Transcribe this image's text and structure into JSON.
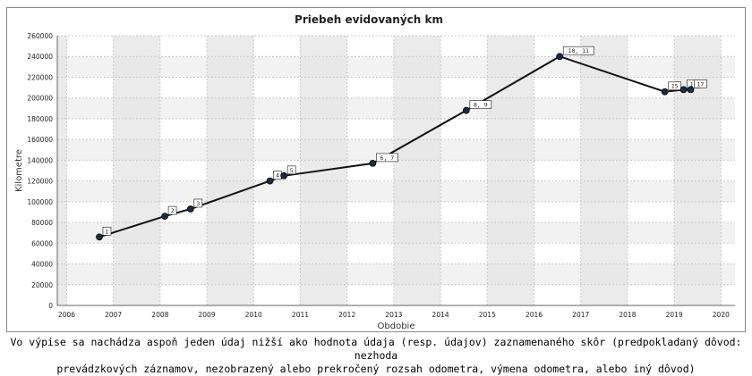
{
  "chart_data": {
    "type": "line",
    "title": "Priebeh evidovaných km",
    "xlabel": "Obdobie",
    "ylabel": "Kilometre",
    "xlim": [
      2005.8,
      2020.3
    ],
    "ylim": [
      0,
      260000
    ],
    "x_ticks": [
      2006,
      2007,
      2008,
      2009,
      2010,
      2011,
      2012,
      2013,
      2014,
      2015,
      2016,
      2017,
      2018,
      2019,
      2020
    ],
    "y_ticks": [
      0,
      20000,
      40000,
      60000,
      80000,
      100000,
      120000,
      140000,
      160000,
      180000,
      200000,
      220000,
      240000,
      260000
    ],
    "grid": true,
    "line_color": "#111111",
    "marker_color": "#1c2a3f",
    "points": [
      {
        "x": 2006.7,
        "y": 66000,
        "label": "1"
      },
      {
        "x": 2008.1,
        "y": 86000,
        "label": "2"
      },
      {
        "x": 2008.65,
        "y": 93000,
        "label": "3"
      },
      {
        "x": 2010.35,
        "y": 120000,
        "label": "4"
      },
      {
        "x": 2010.65,
        "y": 125000,
        "label": "5"
      },
      {
        "x": 2012.55,
        "y": 137000,
        "label": "6, 7"
      },
      {
        "x": 2014.55,
        "y": 188000,
        "label": "8, 9"
      },
      {
        "x": 2016.55,
        "y": 240000,
        "label": "10, 11"
      },
      {
        "x": 2018.8,
        "y": 206000,
        "label": "15"
      },
      {
        "x": 2019.2,
        "y": 208000,
        "label": "13"
      },
      {
        "x": 2019.35,
        "y": 208000,
        "label": "17"
      }
    ]
  },
  "footnote": {
    "line1": "Vo výpise sa nachádza  aspoň jeden údaj nižší ako hodnota údaja (resp. údajov) zaznamenaného skôr (predpokladaný dôvod: nezhoda",
    "line2": "prevádzkových záznamov, nezobrazený alebo prekročený rozsah odometra, výmena odometra, alebo iný dôvod)"
  }
}
